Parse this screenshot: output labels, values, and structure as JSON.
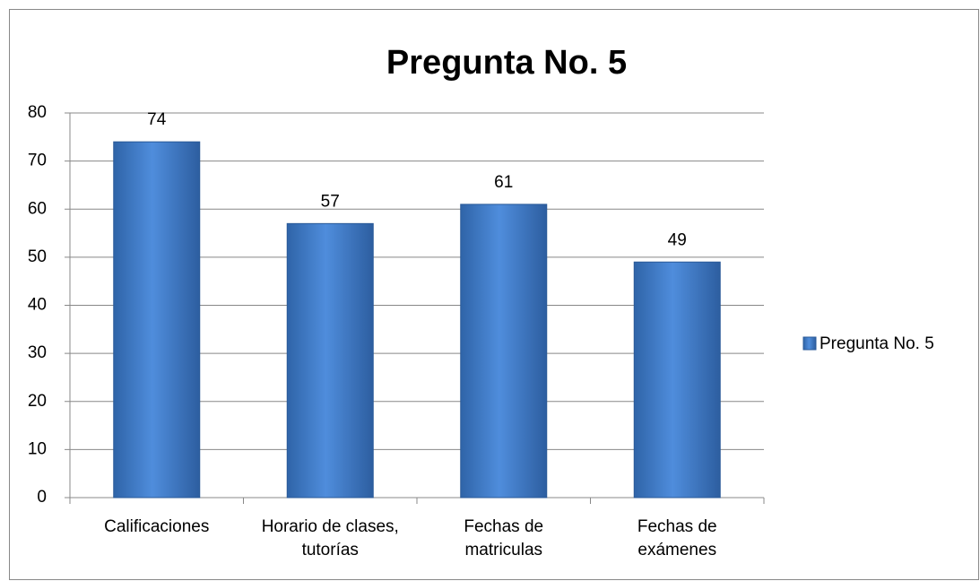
{
  "chart_data": {
    "type": "bar",
    "title": "Pregunta No. 5",
    "categories": [
      "Calificaciones",
      "Horario de clases, tutorías",
      "Fechas de matriculas",
      "Fechas de exámenes"
    ],
    "series": [
      {
        "name": "Pregunta No. 5",
        "color": "#4a86d4",
        "values": [
          74,
          57,
          61,
          49
        ]
      }
    ],
    "ylim": [
      0,
      80
    ],
    "yticks": [
      0,
      10,
      20,
      30,
      40,
      50,
      60,
      70,
      80
    ],
    "grid": true,
    "legend": "right"
  }
}
